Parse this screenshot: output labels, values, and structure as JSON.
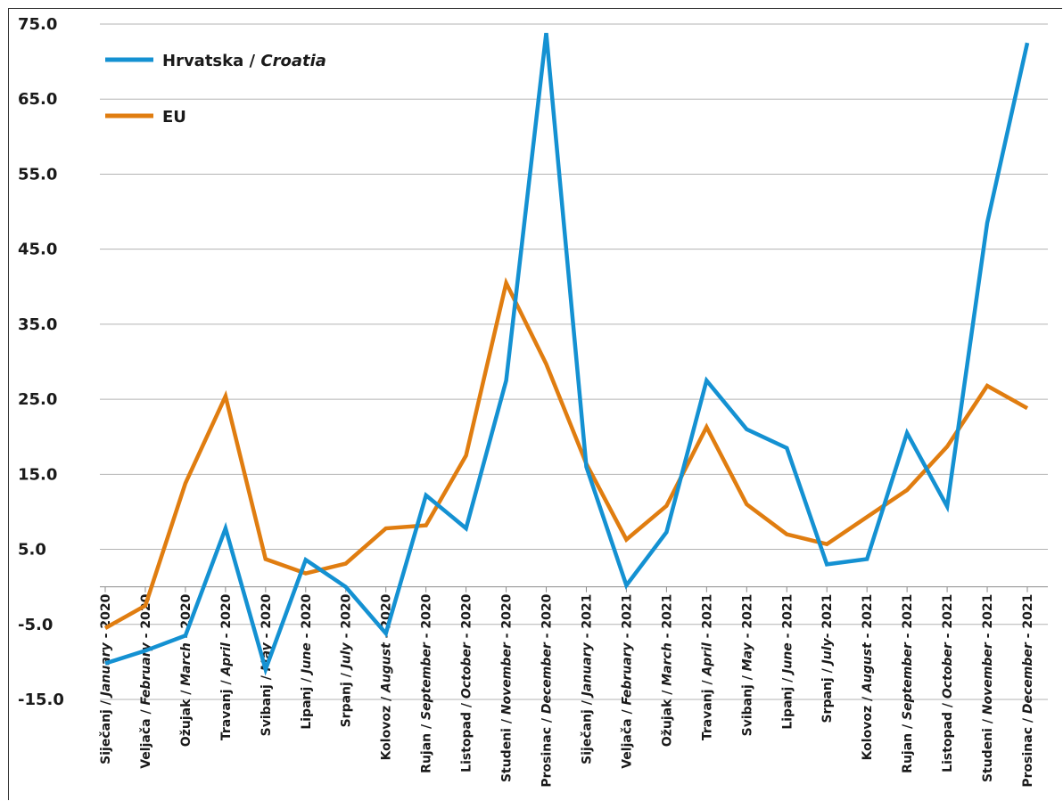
{
  "chart_data": {
    "type": "line",
    "categories": [
      "Siječanj / January - 2020",
      "Veljača / February - 2020",
      "Ožujak / March - 2020",
      "Travanj / April - 2020",
      "Svibanj / May - 2020",
      "Lipanj / June - 2020",
      "Srpanj / July - 2020",
      "Kolovoz / August - 2020",
      "Rujan / September - 2020",
      "Listopad / October - 2020",
      "Studeni / November - 2020",
      "Prosinac / December - 2020",
      "Siječanj / January - 2021",
      "Veljača / February - 2021",
      "Ožujak / March - 2021",
      "Travanj / April - 2021",
      "Svibanj / May - 2021",
      "Lipanj / June - 2021",
      "Srpanj / July- 2021",
      "Kolovoz / August - 2021",
      "Rujan / September - 2021",
      "Listopad / October - 2021",
      "Studeni / November - 2021",
      "Prosinac / December - 2021"
    ],
    "category_parts": [
      [
        "Siječanj / ",
        "January",
        " - 2020"
      ],
      [
        "Veljača / ",
        "February",
        " - 2020"
      ],
      [
        "Ožujak / ",
        "March",
        " - 2020"
      ],
      [
        "Travanj / ",
        "April",
        " - 2020"
      ],
      [
        "Svibanj / ",
        "May",
        " - 2020"
      ],
      [
        "Lipanj / ",
        "June",
        " - 2020"
      ],
      [
        "Srpanj / ",
        "July",
        " - 2020"
      ],
      [
        "Kolovoz / ",
        "August",
        " - 2020"
      ],
      [
        "Rujan / ",
        "September",
        " - 2020"
      ],
      [
        "Listopad / ",
        "October",
        " - 2020"
      ],
      [
        "Studeni / ",
        "November",
        " - 2020"
      ],
      [
        "Prosinac / ",
        "December",
        " - 2020"
      ],
      [
        "Siječanj / ",
        "January",
        " - 2021"
      ],
      [
        "Veljača / ",
        "February",
        " - 2021"
      ],
      [
        "Ožujak / ",
        "March",
        " - 2021"
      ],
      [
        "Travanj / ",
        "April",
        " - 2021"
      ],
      [
        "Svibanj / ",
        "May",
        " - 2021"
      ],
      [
        "Lipanj / ",
        "June",
        " - 2021"
      ],
      [
        "Srpanj / ",
        "July",
        "- 2021"
      ],
      [
        "Kolovoz / ",
        "August",
        " - 2021"
      ],
      [
        "Rujan / ",
        "September",
        " - 2021"
      ],
      [
        "Listopad / ",
        "October",
        " - 2021"
      ],
      [
        "Studeni / ",
        "November",
        " - 2021"
      ],
      [
        "Prosinac / ",
        "December",
        " - 2021"
      ]
    ],
    "series": [
      {
        "name": "Hrvatska / Croatia",
        "name_parts": [
          "Hrvatska / ",
          "Croatia"
        ],
        "color": "#1491d2",
        "values": [
          -10.2,
          -8.5,
          -6.5,
          7.8,
          -11.0,
          3.6,
          0.0,
          -6.2,
          12.2,
          7.8,
          27.5,
          73.8,
          16.0,
          0.2,
          7.3,
          27.5,
          21.0,
          18.5,
          3.0,
          3.7,
          20.5,
          10.7,
          48.5,
          72.5
        ]
      },
      {
        "name": "EU",
        "name_parts": [
          "EU",
          ""
        ],
        "color": "#e07d10",
        "values": [
          -5.5,
          -2.5,
          13.8,
          25.4,
          3.7,
          1.8,
          3.1,
          7.8,
          8.2,
          17.5,
          40.5,
          29.7,
          16.4,
          6.3,
          10.8,
          21.3,
          11.0,
          7.0,
          5.7,
          9.3,
          12.9,
          18.7,
          26.8,
          23.8
        ]
      }
    ],
    "y_ticks": [
      "75.0",
      "65.0",
      "55.0",
      "45.0",
      "35.0",
      "25.0",
      "15.0",
      "5.0",
      "-5.0",
      "-15.0"
    ],
    "ylim": [
      -15,
      75
    ],
    "grid": true,
    "legend_position": "top-left"
  }
}
